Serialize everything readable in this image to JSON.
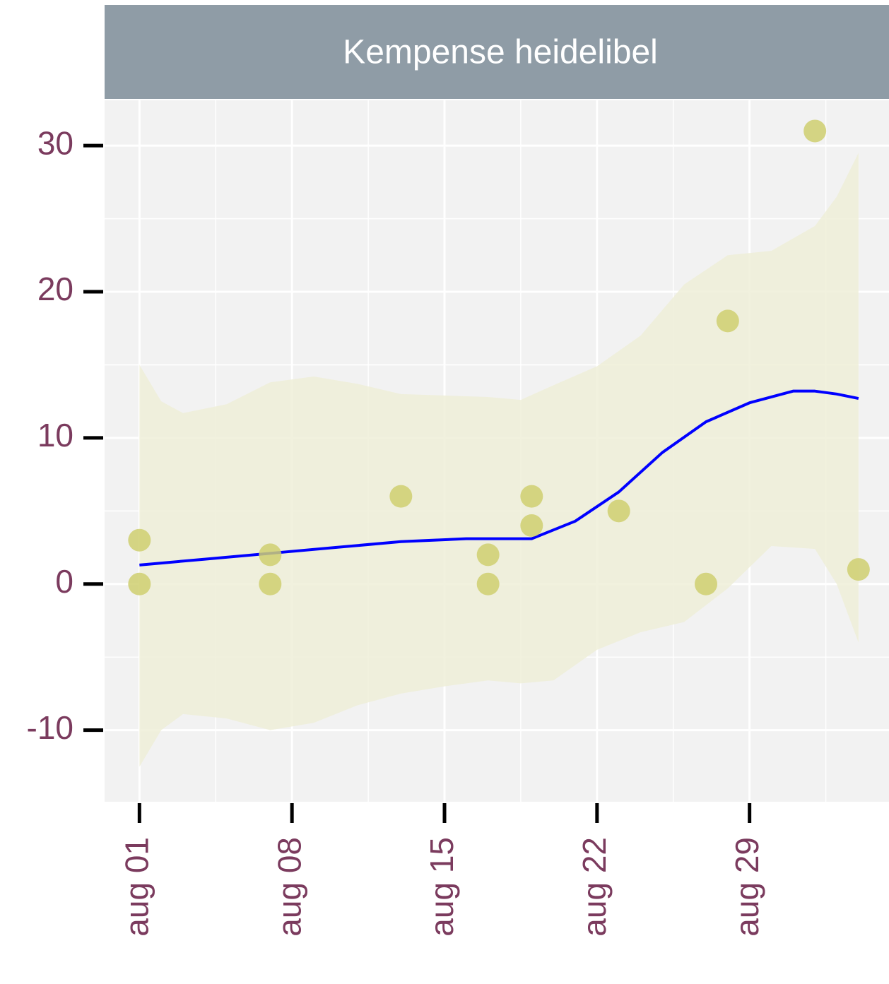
{
  "chart_data": {
    "type": "scatter",
    "title": "Kempense heidelibel",
    "xlim": [
      -0.6,
      35.4
    ],
    "xticks": [
      {
        "value": 1,
        "label": "aug 01"
      },
      {
        "value": 8,
        "label": "aug 08"
      },
      {
        "value": 15,
        "label": "aug 15"
      },
      {
        "value": 22,
        "label": "aug 22"
      },
      {
        "value": 29,
        "label": "aug 29"
      }
    ],
    "xminor_ticks": [
      4.5,
      11.5,
      18.5,
      25.5,
      32.5
    ],
    "ylim": [
      -14.9,
      33.1
    ],
    "yticks": [
      -10,
      0,
      10,
      20,
      30
    ],
    "yminor_ticks": [
      -5,
      5,
      15,
      25
    ],
    "grid": true,
    "points": {
      "color": "#cfcf70",
      "x": [
        1,
        1,
        7,
        7,
        13,
        17,
        17,
        19,
        19,
        23,
        27,
        28,
        32,
        34
      ],
      "values": [
        3,
        0,
        2,
        0,
        6,
        2,
        0,
        6,
        4,
        5,
        0,
        18,
        31,
        1
      ]
    },
    "smooth": {
      "color": "#0000ff",
      "x": [
        1,
        4,
        7,
        10,
        13,
        16,
        19,
        21,
        23,
        25,
        27,
        29,
        31,
        32,
        33,
        34
      ],
      "values": [
        1.3,
        1.7,
        2.1,
        2.5,
        2.9,
        3.1,
        3.1,
        4.3,
        6.3,
        9.0,
        11.1,
        12.4,
        13.2,
        13.2,
        13.0,
        12.7
      ]
    },
    "ribbon": {
      "color": "#eeeed8",
      "x": [
        1,
        2,
        3,
        5,
        7,
        9,
        11,
        13,
        15,
        17,
        18.5,
        20,
        22,
        24,
        26,
        28,
        30,
        32,
        33,
        34
      ],
      "upper": [
        15,
        12.5,
        11.7,
        12.3,
        13.8,
        14.2,
        13.7,
        13.0,
        12.9,
        12.8,
        12.6,
        13.6,
        14.9,
        17,
        20.5,
        22.5,
        22.8,
        24.5,
        26.5,
        29.5
      ],
      "lower": [
        -12.5,
        -10,
        -8.9,
        -9.2,
        -10,
        -9.5,
        -8.3,
        -7.5,
        -7.0,
        -6.6,
        -6.8,
        -6.6,
        -4.5,
        -3.3,
        -2.6,
        -0.3,
        2.6,
        2.4,
        0,
        -4
      ]
    }
  }
}
